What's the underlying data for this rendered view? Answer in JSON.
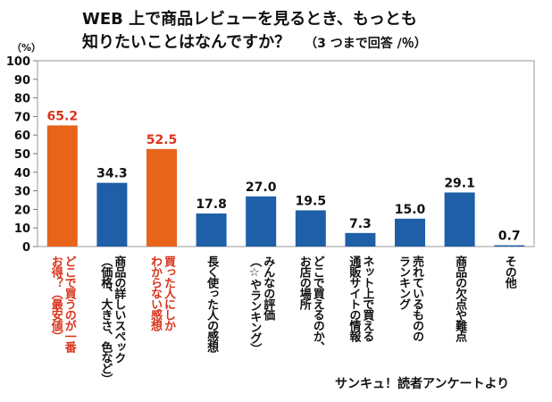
{
  "header": {
    "title_line1": "WEB 上で商品レビューを見るとき、もっとも",
    "title_line2": "知りたいことはなんですか？",
    "note": "（3 つまで回答 /％）"
  },
  "footer": {
    "source": "サンキュ！読者アンケートより"
  },
  "chart_data": {
    "type": "bar",
    "ylabel": "（%）",
    "ylim": [
      0,
      100
    ],
    "yticks": [
      0,
      10,
      20,
      30,
      40,
      50,
      60,
      70,
      80,
      90,
      100
    ],
    "grid": false,
    "categories": [
      "どこで買うのが一番\nお得？（最安値）",
      "商品の詳しいスペック\n（価格、大きさ、色など）",
      "買った人にしか\nわからない感想",
      "長く使った人の感想",
      "みんなの評価\n（☆やランキング）",
      "どこで買えるのか、\nお店の場所",
      "ネット上で買える\n通販サイトの情報",
      "売れているものの\nランキング",
      "商品の欠点や難点",
      "その他"
    ],
    "values": [
      65.2,
      34.3,
      52.5,
      17.8,
      27.0,
      19.5,
      7.3,
      15.0,
      29.1,
      0.7
    ],
    "value_labels": [
      "65.2",
      "34.3",
      "52.5",
      "17.8",
      "27.0",
      "19.5",
      "7.3",
      "15.0",
      "29.1",
      "0.7"
    ],
    "highlighted": [
      true,
      false,
      true,
      false,
      false,
      false,
      false,
      false,
      false,
      false
    ],
    "colors": {
      "bar": "#1f5fa8",
      "highlight_bar": "#e8641b",
      "highlight_text": "#d9341c",
      "text": "#111111"
    }
  }
}
